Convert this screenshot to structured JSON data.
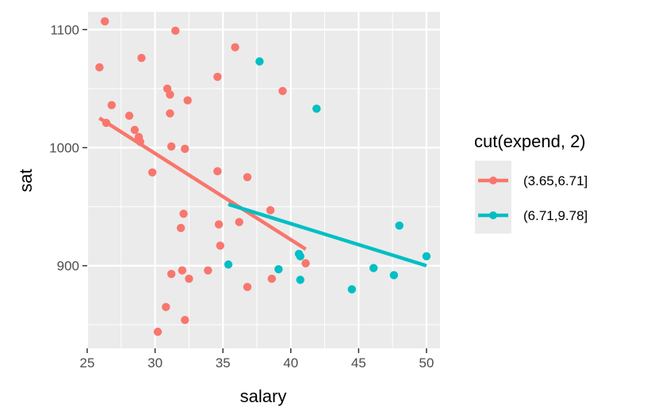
{
  "chart_data": {
    "type": "scatter",
    "title": "",
    "xlabel": "salary",
    "ylabel": "sat",
    "xlim": [
      25,
      51
    ],
    "ylim": [
      830,
      1115
    ],
    "x_ticks": [
      25,
      30,
      35,
      40,
      45,
      50
    ],
    "y_ticks": [
      900,
      1000,
      1100
    ],
    "x_tick_labels": [
      "25",
      "30",
      "35",
      "40",
      "45",
      "50"
    ],
    "y_tick_labels": [
      "900",
      "1000",
      "1100"
    ],
    "grid": true,
    "legend": {
      "title": "cut(expend, 2)",
      "placement": "right",
      "entries": [
        "(3.65,6.71]",
        "(6.71,9.78]"
      ]
    },
    "series": [
      {
        "name": "(3.65,6.71]",
        "color": "#F8766D",
        "points": [
          [
            26.3,
            1107
          ],
          [
            25.9,
            1068
          ],
          [
            29.0,
            1076
          ],
          [
            31.5,
            1099
          ],
          [
            35.9,
            1085
          ],
          [
            26.8,
            1036
          ],
          [
            26.4,
            1021
          ],
          [
            28.1,
            1027
          ],
          [
            28.5,
            1015
          ],
          [
            28.8,
            1009
          ],
          [
            28.9,
            1005
          ],
          [
            30.9,
            1050
          ],
          [
            31.1,
            1045
          ],
          [
            32.4,
            1040
          ],
          [
            31.1,
            1029
          ],
          [
            34.6,
            1060
          ],
          [
            31.2,
            1001
          ],
          [
            32.2,
            999
          ],
          [
            29.8,
            979
          ],
          [
            34.6,
            980
          ],
          [
            36.8,
            975
          ],
          [
            32.1,
            944
          ],
          [
            38.5,
            947
          ],
          [
            31.9,
            932
          ],
          [
            34.7,
            935
          ],
          [
            36.2,
            937
          ],
          [
            34.8,
            917
          ],
          [
            31.2,
            893
          ],
          [
            32.0,
            896
          ],
          [
            32.5,
            889
          ],
          [
            33.9,
            896
          ],
          [
            38.6,
            889
          ],
          [
            36.8,
            882
          ],
          [
            41.1,
            902
          ],
          [
            30.8,
            865
          ],
          [
            32.2,
            854
          ],
          [
            30.2,
            844
          ],
          [
            39.4,
            1048
          ]
        ],
        "fit_line": [
          [
            25.9,
            1025
          ],
          [
            41.1,
            914
          ]
        ]
      },
      {
        "name": "(6.71,9.78]",
        "color": "#00BFC4",
        "points": [
          [
            37.7,
            1073
          ],
          [
            41.9,
            1033
          ],
          [
            35.4,
            901
          ],
          [
            39.1,
            897
          ],
          [
            40.6,
            910
          ],
          [
            40.7,
            908
          ],
          [
            40.7,
            888
          ],
          [
            44.5,
            880
          ],
          [
            46.1,
            898
          ],
          [
            47.6,
            892
          ],
          [
            48.0,
            934
          ],
          [
            50.0,
            908
          ]
        ],
        "fit_line": [
          [
            35.4,
            952
          ],
          [
            50.0,
            900
          ]
        ]
      }
    ]
  }
}
